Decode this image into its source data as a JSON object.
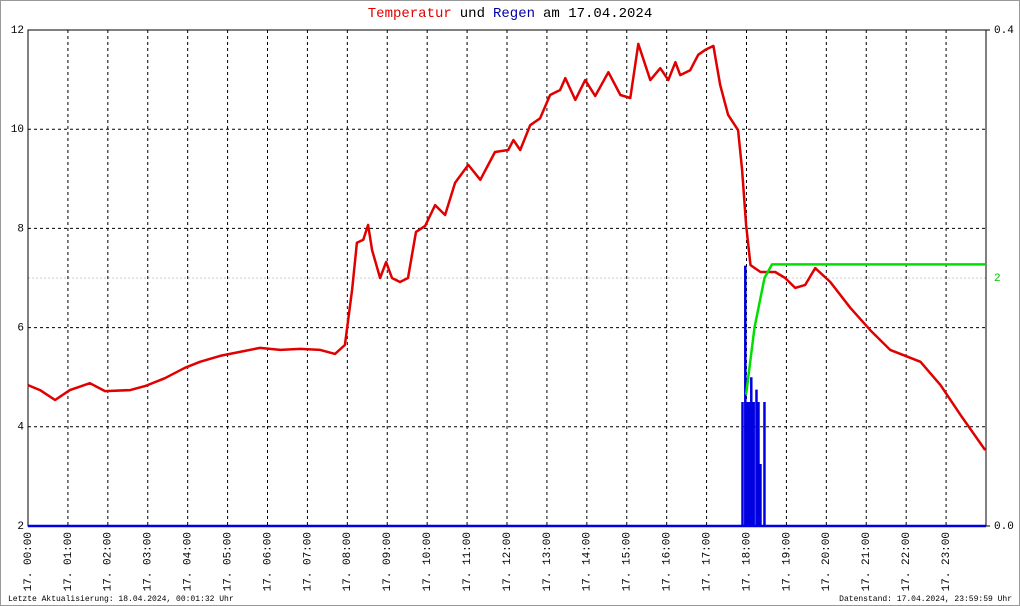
{
  "chart_data": {
    "type": "line",
    "title": [
      "Temperatur",
      "und",
      "Regen",
      "am 17.04.2024"
    ],
    "title_colors": [
      "#e00000",
      "#000000",
      "#0000a0",
      "#000000"
    ],
    "xlim": [
      0,
      24
    ],
    "xticks": [
      {
        "value": 0,
        "label": "17. 00:00"
      },
      {
        "value": 1,
        "label": "17. 01:00"
      },
      {
        "value": 2,
        "label": "17. 02:00"
      },
      {
        "value": 3,
        "label": "17. 03:00"
      },
      {
        "value": 4,
        "label": "17. 04:00"
      },
      {
        "value": 5,
        "label": "17. 05:00"
      },
      {
        "value": 6,
        "label": "17. 06:00"
      },
      {
        "value": 7,
        "label": "17. 07:00"
      },
      {
        "value": 8,
        "label": "17. 08:00"
      },
      {
        "value": 9,
        "label": "17. 09:00"
      },
      {
        "value": 10,
        "label": "17. 10:00"
      },
      {
        "value": 11,
        "label": "17. 11:00"
      },
      {
        "value": 12,
        "label": "17. 12:00"
      },
      {
        "value": 13,
        "label": "17. 13:00"
      },
      {
        "value": 14,
        "label": "17. 14:00"
      },
      {
        "value": 15,
        "label": "17. 15:00"
      },
      {
        "value": 16,
        "label": "17. 16:00"
      },
      {
        "value": 17,
        "label": "17. 17:00"
      },
      {
        "value": 18,
        "label": "17. 18:00"
      },
      {
        "value": 19,
        "label": "17. 19:00"
      },
      {
        "value": 20,
        "label": "17. 20:00"
      },
      {
        "value": 21,
        "label": "17. 21:00"
      },
      {
        "value": 22,
        "label": "17. 22:00"
      },
      {
        "value": 23,
        "label": "17. 23:00"
      }
    ],
    "ylim": [
      2,
      12
    ],
    "yticks": [
      2,
      4,
      6,
      8,
      10,
      12
    ],
    "y2lim": [
      0,
      0.4
    ],
    "y2ticks": [
      {
        "value": 0,
        "label": "0.0"
      },
      0.4
    ],
    "y3lim": [
      0,
      4
    ],
    "y3ticks": [
      2
    ],
    "y3color": "#00c000",
    "grid": true,
    "series": [
      {
        "name": "Temperatur",
        "color": "#e00000",
        "mark": "line",
        "x": [
          0,
          0.3,
          0.68,
          1.05,
          1.55,
          1.93,
          2.56,
          2.93,
          3.43,
          3.93,
          4.31,
          4.81,
          5.31,
          5.81,
          6.32,
          6.82,
          7.32,
          7.69,
          7.94,
          8.12,
          8.24,
          8.4,
          8.52,
          8.62,
          8.82,
          8.97,
          9.12,
          9.32,
          9.52,
          9.72,
          9.95,
          10.2,
          10.45,
          10.7,
          11.03,
          11.33,
          11.7,
          12.03,
          12.16,
          12.33,
          12.58,
          12.83,
          13.08,
          13.33,
          13.46,
          13.71,
          13.96,
          14.21,
          14.54,
          14.84,
          15.09,
          15.29,
          15.59,
          15.84,
          16.04,
          16.22,
          16.34,
          16.59,
          16.79,
          16.97,
          17.17,
          17.34,
          17.54,
          17.79,
          17.89,
          17.99,
          18.1,
          18.35,
          18.72,
          18.97,
          19.22,
          19.47,
          19.72,
          20.1,
          20.6,
          21.1,
          21.6,
          22.36,
          22.86,
          23.36,
          23.98
        ],
        "values": [
          4.84,
          4.74,
          4.54,
          4.74,
          4.88,
          4.72,
          4.74,
          4.82,
          4.98,
          5.19,
          5.31,
          5.43,
          5.51,
          5.59,
          5.55,
          5.57,
          5.55,
          5.47,
          5.65,
          6.76,
          7.71,
          7.77,
          8.07,
          7.56,
          7.0,
          7.32,
          7.0,
          6.92,
          7.0,
          7.93,
          8.05,
          8.47,
          8.27,
          8.92,
          9.28,
          8.98,
          9.54,
          9.58,
          9.78,
          9.58,
          10.08,
          10.22,
          10.69,
          10.79,
          11.03,
          10.59,
          10.99,
          10.67,
          11.15,
          10.69,
          10.63,
          11.72,
          10.99,
          11.23,
          10.99,
          11.35,
          11.09,
          11.19,
          11.5,
          11.6,
          11.68,
          10.89,
          10.29,
          9.98,
          9.18,
          8.07,
          7.26,
          7.12,
          7.12,
          7.0,
          6.8,
          6.86,
          7.2,
          6.92,
          6.4,
          5.95,
          5.55,
          5.31,
          4.84,
          4.24,
          3.53
        ]
      },
      {
        "name": "Regen",
        "color": "#0000e0",
        "mark": "bar",
        "axis": "y2",
        "x": [
          17.9,
          17.97,
          18.02,
          18.08,
          18.12,
          18.18,
          18.25,
          18.3,
          18.35,
          18.45
        ],
        "values": [
          0.1,
          0.21,
          0.1,
          0.1,
          0.12,
          0.1,
          0.11,
          0.1,
          0.05,
          0.1
        ]
      },
      {
        "color": "#00e000",
        "mark": "line",
        "axis": "y3",
        "x": [
          17.99,
          18.2,
          18.45,
          18.64,
          24
        ],
        "values": [
          1.06,
          1.6,
          2.0,
          2.11,
          2.11
        ]
      }
    ],
    "footer_left": "Letzte Aktualisierung: 18.04.2024, 00:01:32 Uhr",
    "footer_right": "Datenstand: 17.04.2024, 23:59:59 Uhr"
  }
}
